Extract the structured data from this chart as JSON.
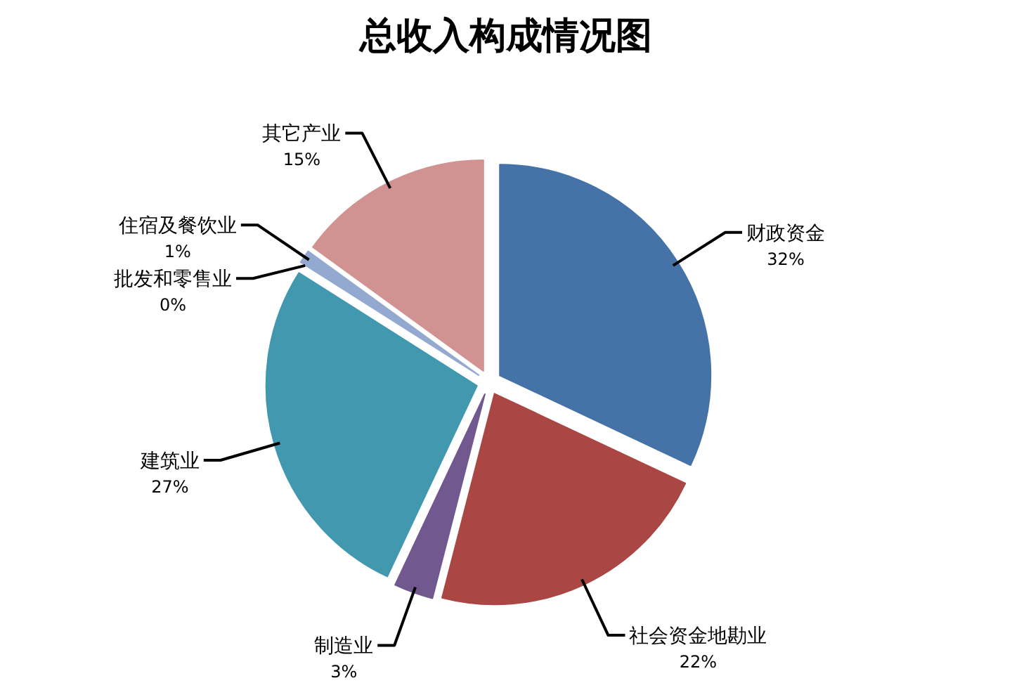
{
  "chart_data": {
    "type": "pie",
    "title": "总收入构成情况图",
    "categories": [
      "财政资金",
      "社会资金地勘业",
      "制造业",
      "建筑业",
      "批发和零售业",
      "住宿及餐饮业",
      "其它产业"
    ],
    "values": [
      32,
      22,
      3,
      27,
      0,
      1,
      15
    ],
    "colors": [
      "#4572a7",
      "#aa4643",
      "#71588f",
      "#4198af",
      null,
      "#93a9cf",
      "#d19392"
    ],
    "value_labels": [
      "32%",
      "22%",
      "3%",
      "27%",
      "0%",
      "1%",
      "15%"
    ]
  }
}
